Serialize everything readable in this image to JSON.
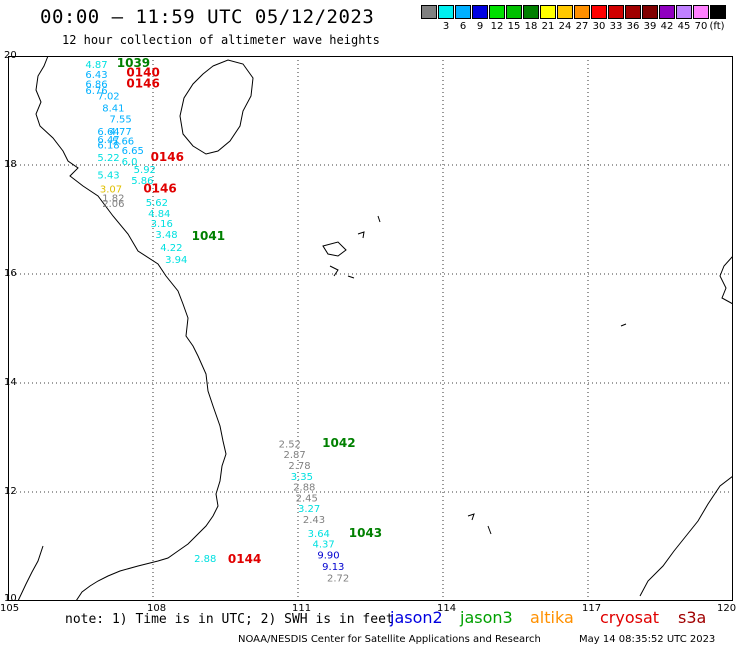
{
  "header": {
    "title": "00:00 – 11:59 UTC 05/12/2023",
    "subtitle": "12 hour collection of altimeter wave heights"
  },
  "scale": {
    "unit_label": "(ft)",
    "levels": [
      {
        "label": "",
        "color": "#808080"
      },
      {
        "label": "3",
        "color": "#00f0f0"
      },
      {
        "label": "6",
        "color": "#00b0ff"
      },
      {
        "label": "9",
        "color": "#0000e0"
      },
      {
        "label": "12",
        "color": "#00e000"
      },
      {
        "label": "15",
        "color": "#00c000"
      },
      {
        "label": "18",
        "color": "#008000"
      },
      {
        "label": "21",
        "color": "#ffff00"
      },
      {
        "label": "24",
        "color": "#ffc800"
      },
      {
        "label": "27",
        "color": "#ff9000"
      },
      {
        "label": "30",
        "color": "#ff0000"
      },
      {
        "label": "33",
        "color": "#d00000"
      },
      {
        "label": "36",
        "color": "#a00000"
      },
      {
        "label": "39",
        "color": "#800000"
      },
      {
        "label": "42",
        "color": "#9000c0"
      },
      {
        "label": "45",
        "color": "#c080ff"
      },
      {
        "label": "70",
        "color": "#ff80ff"
      },
      {
        "label": "",
        "color": "#000000"
      }
    ]
  },
  "map": {
    "lon_ticks": [
      "105",
      "108",
      "111",
      "114",
      "117",
      "120"
    ],
    "lat_ticks": [
      "20",
      "18",
      "16",
      "14",
      "12",
      "10"
    ],
    "lon_range": [
      105,
      120
    ],
    "lat_range": [
      10,
      20
    ]
  },
  "observations": [
    {
      "text": "4.87",
      "lon": 106.6,
      "lat": 19.78,
      "color": "#00e0e0"
    },
    {
      "text": "6.43",
      "lon": 106.6,
      "lat": 19.6,
      "color": "#00b0ff"
    },
    {
      "text": "6.86",
      "lon": 106.6,
      "lat": 19.42,
      "color": "#00b0ff"
    },
    {
      "text": "6.76",
      "lon": 106.6,
      "lat": 19.3,
      "color": "#00b0ff"
    },
    {
      "text": "7.02",
      "lon": 106.85,
      "lat": 19.2,
      "color": "#00b0ff"
    },
    {
      "text": "8.41",
      "lon": 106.95,
      "lat": 18.98,
      "color": "#00b0ff"
    },
    {
      "text": "7.55",
      "lon": 107.1,
      "lat": 18.78,
      "color": "#00b0ff"
    },
    {
      "text": "6.64",
      "lon": 106.85,
      "lat": 18.55,
      "color": "#00b0ff"
    },
    {
      "text": "4.77",
      "lon": 107.1,
      "lat": 18.55,
      "color": "#00b0ff"
    },
    {
      "text": "6.47",
      "lon": 106.85,
      "lat": 18.4,
      "color": "#00b0ff"
    },
    {
      "text": "5.66",
      "lon": 107.15,
      "lat": 18.38,
      "color": "#00b0ff"
    },
    {
      "text": "6.18",
      "lon": 106.85,
      "lat": 18.3,
      "color": "#00b0ff"
    },
    {
      "text": "6.65",
      "lon": 107.35,
      "lat": 18.2,
      "color": "#00b0ff"
    },
    {
      "text": "5.22",
      "lon": 106.85,
      "lat": 18.07,
      "color": "#00e0e0"
    },
    {
      "text": "6.0",
      "lon": 107.35,
      "lat": 18.0,
      "color": "#00e0e0"
    },
    {
      "text": "5.92",
      "lon": 107.6,
      "lat": 17.85,
      "color": "#00e0e0"
    },
    {
      "text": "5.43",
      "lon": 106.85,
      "lat": 17.75,
      "color": "#00e0e0"
    },
    {
      "text": "5.86",
      "lon": 107.55,
      "lat": 17.65,
      "color": "#00e0e0"
    },
    {
      "text": "3.07",
      "lon": 106.9,
      "lat": 17.5,
      "color": "#e0c000"
    },
    {
      "text": "1.82",
      "lon": 106.95,
      "lat": 17.33,
      "color": "#808080"
    },
    {
      "text": "2.06",
      "lon": 106.95,
      "lat": 17.23,
      "color": "#808080"
    },
    {
      "text": "5.62",
      "lon": 107.85,
      "lat": 17.25,
      "color": "#00e0e0"
    },
    {
      "text": "4.84",
      "lon": 107.9,
      "lat": 17.05,
      "color": "#00e0e0"
    },
    {
      "text": "3.16",
      "lon": 107.95,
      "lat": 16.86,
      "color": "#00e0e0"
    },
    {
      "text": "3.48",
      "lon": 108.05,
      "lat": 16.66,
      "color": "#00e0e0"
    },
    {
      "text": "4.22",
      "lon": 108.15,
      "lat": 16.42,
      "color": "#00e0e0"
    },
    {
      "text": "3.94",
      "lon": 108.25,
      "lat": 16.2,
      "color": "#00e0e0"
    },
    {
      "text": "2.52",
      "lon": 110.6,
      "lat": 12.82,
      "color": "#808080"
    },
    {
      "text": "2.87",
      "lon": 110.7,
      "lat": 12.62,
      "color": "#808080"
    },
    {
      "text": "2.78",
      "lon": 110.8,
      "lat": 12.42,
      "color": "#808080"
    },
    {
      "text": "3.35",
      "lon": 110.85,
      "lat": 12.22,
      "color": "#00e0e0"
    },
    {
      "text": "2.88",
      "lon": 110.9,
      "lat": 12.03,
      "color": "#808080"
    },
    {
      "text": "2.45",
      "lon": 110.95,
      "lat": 11.83,
      "color": "#808080"
    },
    {
      "text": "3.27",
      "lon": 111.0,
      "lat": 11.63,
      "color": "#00e0e0"
    },
    {
      "text": "2.43",
      "lon": 111.1,
      "lat": 11.43,
      "color": "#808080"
    },
    {
      "text": "3.64",
      "lon": 111.2,
      "lat": 11.17,
      "color": "#00e0e0"
    },
    {
      "text": "4.37",
      "lon": 111.3,
      "lat": 10.98,
      "color": "#00e0e0"
    },
    {
      "text": "9.90",
      "lon": 111.4,
      "lat": 10.78,
      "color": "#0000d0"
    },
    {
      "text": "9.13",
      "lon": 111.5,
      "lat": 10.57,
      "color": "#0000d0"
    },
    {
      "text": "2.72",
      "lon": 111.6,
      "lat": 10.36,
      "color": "#808080"
    },
    {
      "text": "2.88",
      "lon": 108.85,
      "lat": 10.72,
      "color": "#00e0e0"
    }
  ],
  "tracks": [
    {
      "text": "1039",
      "lon": 107.25,
      "lat": 19.8,
      "color": "#008000"
    },
    {
      "text": "0140",
      "lon": 107.45,
      "lat": 19.62,
      "color": "#e00000"
    },
    {
      "text": "0146",
      "lon": 107.45,
      "lat": 19.42,
      "color": "#e00000"
    },
    {
      "text": "0146",
      "lon": 107.95,
      "lat": 18.07,
      "color": "#e00000"
    },
    {
      "text": "0146",
      "lon": 107.8,
      "lat": 17.5,
      "color": "#e00000"
    },
    {
      "text": "1041",
      "lon": 108.8,
      "lat": 16.62,
      "color": "#008000"
    },
    {
      "text": "1042",
      "lon": 111.5,
      "lat": 12.83,
      "color": "#008000"
    },
    {
      "text": "1043",
      "lon": 112.05,
      "lat": 11.17,
      "color": "#008000"
    },
    {
      "text": "0144",
      "lon": 109.55,
      "lat": 10.7,
      "color": "#e00000"
    }
  ],
  "footer": {
    "note": "note: 1) Time is in UTC; 2) SWH is in feet",
    "satellites": [
      {
        "name": "jason2",
        "color": "#0000e0"
      },
      {
        "name": "jason3",
        "color": "#00a000"
      },
      {
        "name": "altika",
        "color": "#ff9000"
      },
      {
        "name": "cryosat",
        "color": "#e00000"
      },
      {
        "name": "s3a",
        "color": "#a00000"
      }
    ],
    "credit": "NOAA/NESDIS Center for Satellite Applications and Research",
    "timestamp": "May 14 08:35:52 UTC 2023"
  }
}
